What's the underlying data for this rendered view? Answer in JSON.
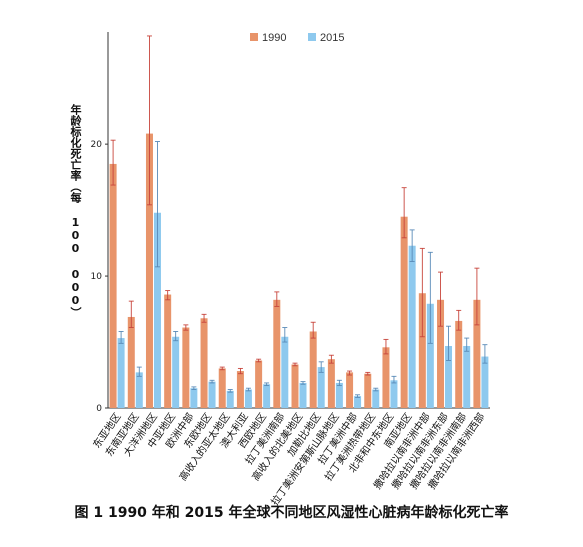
{
  "figure": {
    "caption": "图 1  1990 年和 2015 年全球不同地区风湿性心脏病年龄标化死亡率"
  },
  "colors": {
    "series_1990": "#E8946A",
    "series_2015": "#8EC9EE",
    "err_1990": "#C8453C",
    "err_2015": "#5A8BB8",
    "axis": "#333333"
  },
  "chart_data": {
    "type": "bar",
    "ylabel": "年龄标化死亡率（每 100 000）",
    "ylim": [
      0,
      28.5
    ],
    "yticks": [
      0,
      10,
      20
    ],
    "legend_position": "top-right",
    "categories": [
      "东亚地区",
      "东南亚地区",
      "大洋洲地区",
      "中亚地区",
      "欧洲中部",
      "东欧地区",
      "高收入的亚太地区",
      "澳大利亚",
      "西欧地区",
      "拉丁美洲南部",
      "高收入的北美地区",
      "加勒比地区",
      "拉丁美洲安第斯山脉地区",
      "拉丁美洲中部",
      "拉丁美洲热带地区",
      "北非和中东地区",
      "南亚地区",
      "撒哈拉以南非洲中部",
      "撒哈拉以南非洲东部",
      "撒哈拉以南非洲南部",
      "撒哈拉以南非洲西部"
    ],
    "series": [
      {
        "name": "1990",
        "values": [
          18.5,
          6.9,
          20.8,
          8.6,
          6.1,
          6.8,
          3.0,
          2.8,
          3.6,
          8.2,
          3.3,
          5.8,
          3.7,
          2.7,
          2.6,
          4.6,
          14.5,
          8.7,
          8.2,
          6.6,
          8.2
        ],
        "err_low": [
          16.9,
          6.1,
          15.4,
          8.2,
          5.9,
          6.5,
          2.9,
          2.6,
          3.5,
          7.7,
          3.2,
          5.3,
          3.4,
          2.5,
          2.5,
          4.1,
          12.9,
          5.4,
          6.2,
          5.9,
          6.3
        ],
        "err_high": [
          20.3,
          8.1,
          28.2,
          8.9,
          6.3,
          7.1,
          3.1,
          3.0,
          3.7,
          8.8,
          3.4,
          6.5,
          4.0,
          2.8,
          2.7,
          5.2,
          16.7,
          12.1,
          10.3,
          7.4,
          10.6
        ]
      },
      {
        "name": "2015",
        "values": [
          5.3,
          2.7,
          14.8,
          5.4,
          1.5,
          2.0,
          1.3,
          1.4,
          1.8,
          5.4,
          1.9,
          3.1,
          1.9,
          0.9,
          1.4,
          2.1,
          12.3,
          7.9,
          4.7,
          4.7,
          3.9
        ],
        "err_low": [
          4.9,
          2.4,
          10.7,
          5.1,
          1.4,
          1.9,
          1.2,
          1.3,
          1.7,
          5.0,
          1.8,
          2.7,
          1.7,
          0.8,
          1.3,
          1.9,
          11.1,
          4.9,
          3.6,
          4.3,
          3.4
        ],
        "err_high": [
          5.8,
          3.1,
          20.2,
          5.8,
          1.6,
          2.1,
          1.4,
          1.5,
          1.9,
          6.1,
          2.0,
          3.5,
          2.1,
          1.0,
          1.5,
          2.4,
          13.5,
          11.8,
          6.2,
          5.3,
          4.8
        ]
      }
    ]
  }
}
